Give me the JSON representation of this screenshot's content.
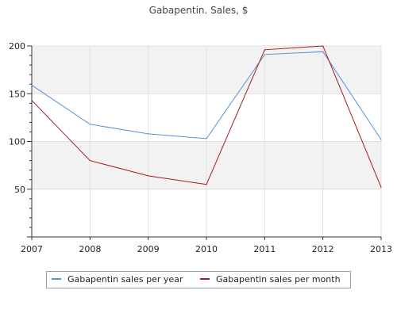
{
  "chart_data": {
    "type": "line",
    "title": "Gabapentin. Sales, $",
    "xlabel": "",
    "ylabel": "",
    "x": [
      "2007",
      "2008",
      "2009",
      "2010",
      "2011",
      "2012",
      "2013"
    ],
    "ylim": [
      0,
      200
    ],
    "yticks": [
      "50",
      "100",
      "150",
      "200"
    ],
    "grid": true,
    "legend_position": "bottom",
    "series": [
      {
        "name": "Gabapentin sales per year",
        "color": "#5a8fd6",
        "values": [
          159,
          118,
          108,
          103,
          191,
          194,
          102
        ]
      },
      {
        "name": "Gabapentin sales per month",
        "color": "#a51c1c",
        "values": [
          143,
          80,
          64,
          55,
          196,
          200,
          52
        ]
      }
    ]
  }
}
